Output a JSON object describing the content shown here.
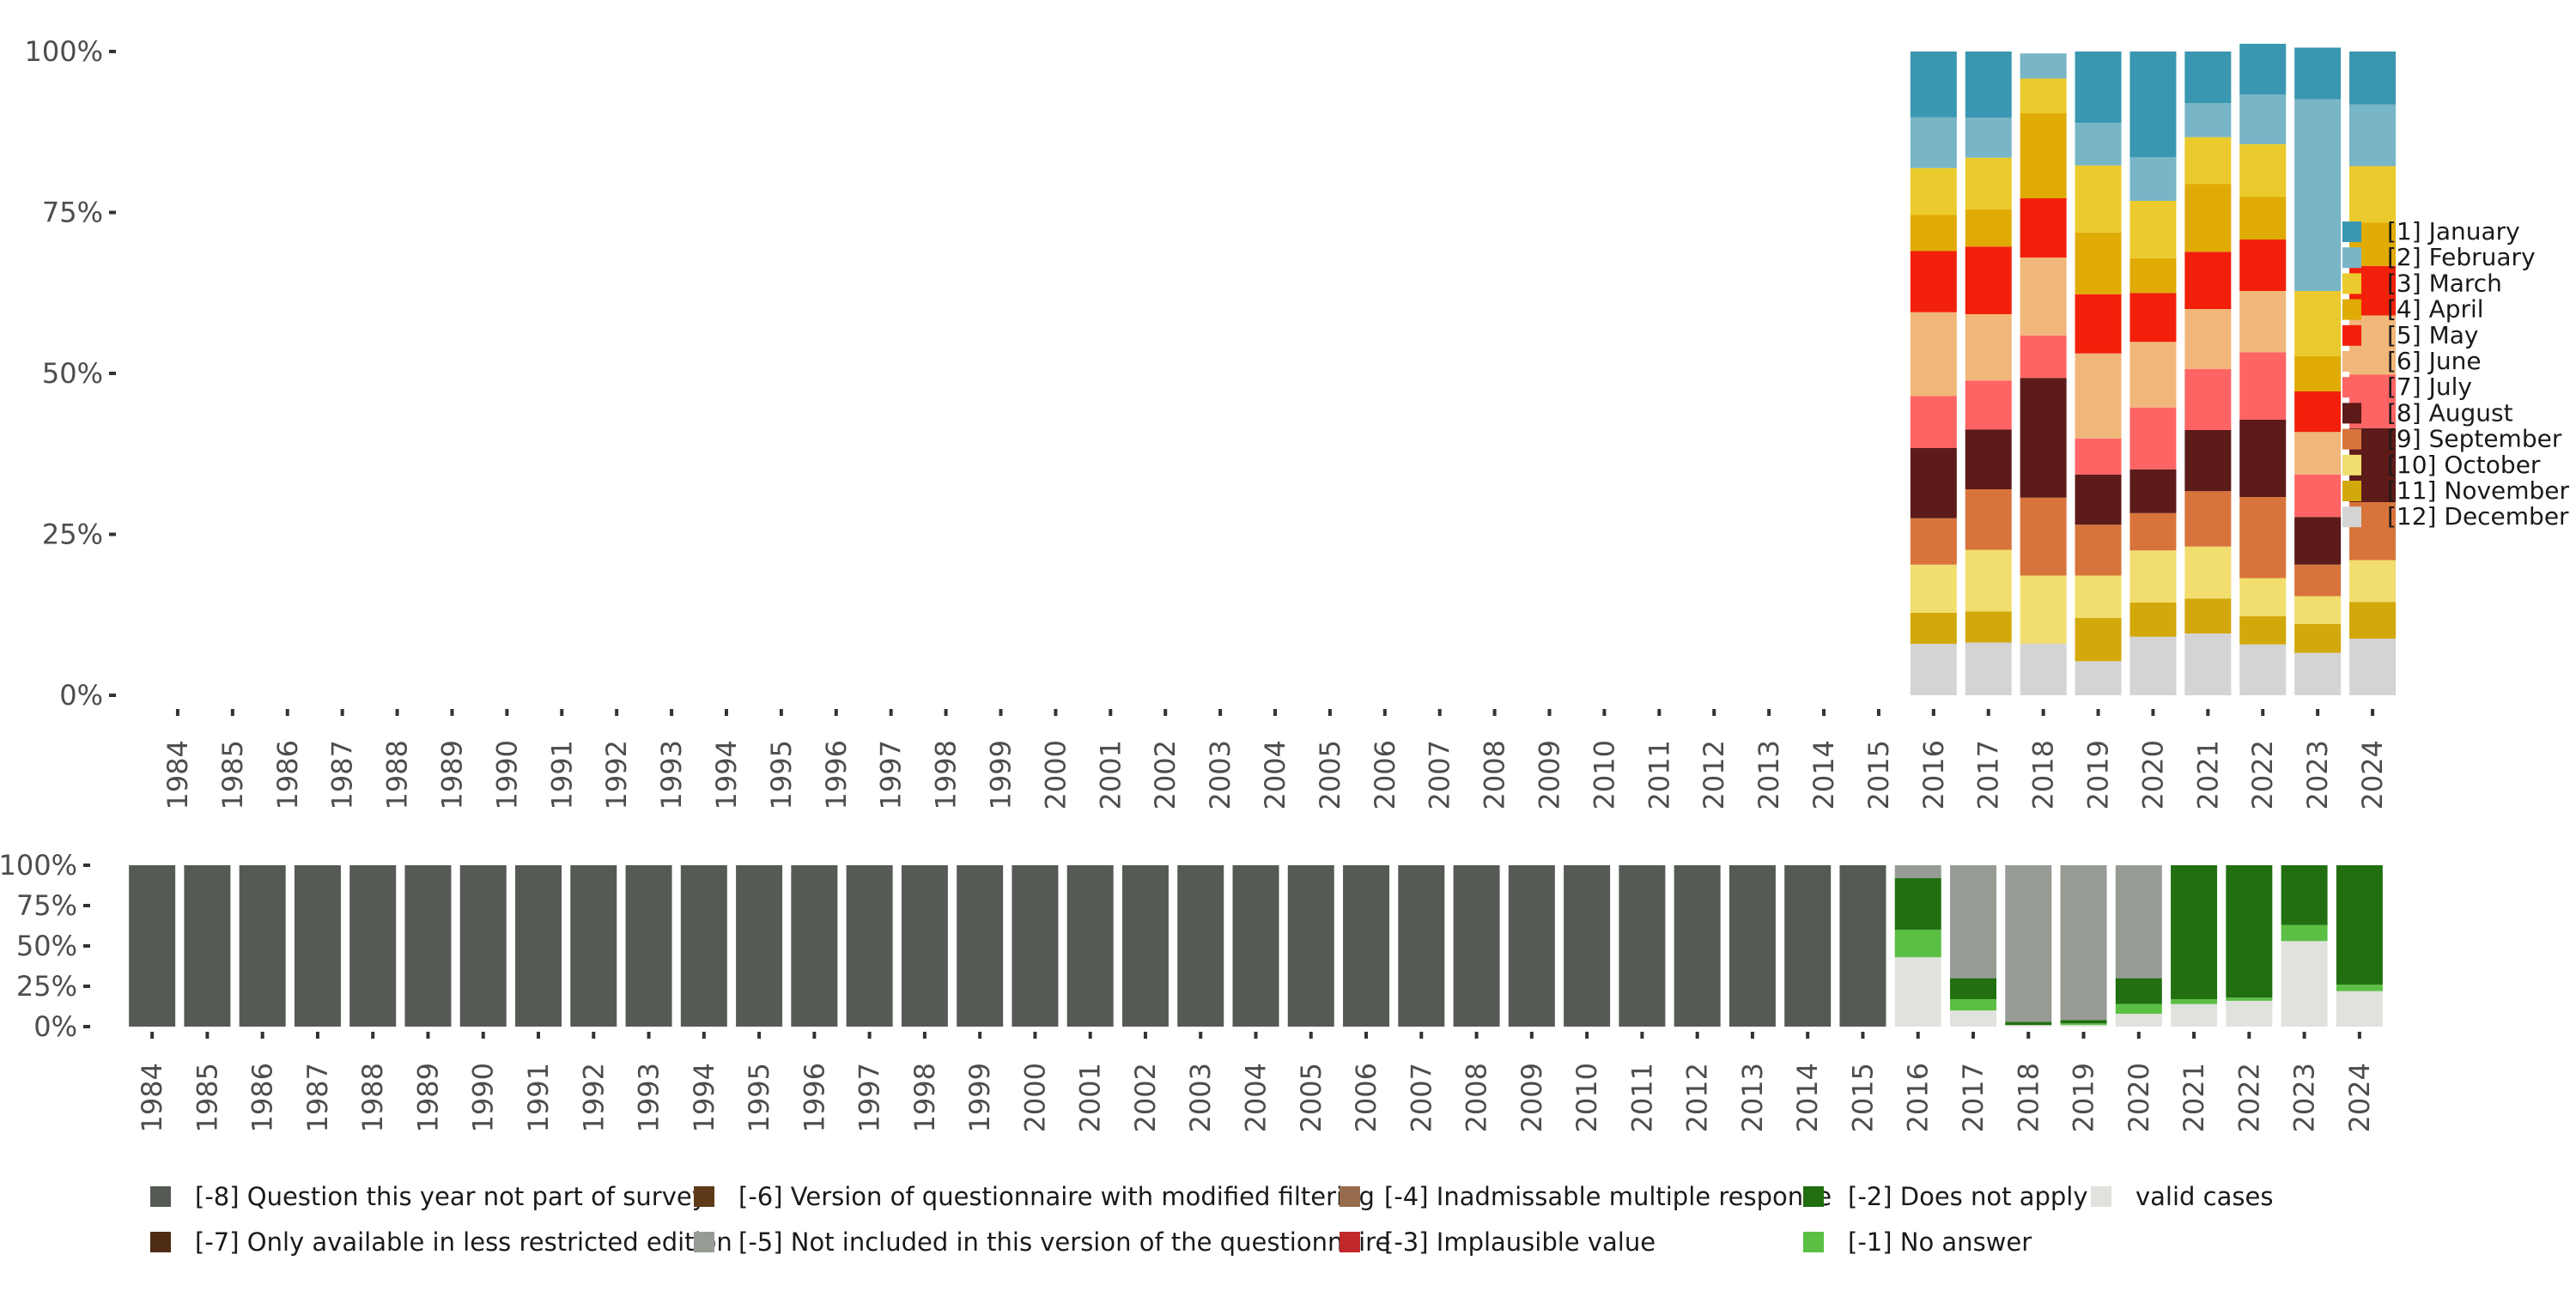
{
  "chart_data": [
    {
      "type": "bar",
      "stacked": true,
      "y_format": "percent",
      "ylim": [
        0,
        100
      ],
      "y_ticks": [
        "0%",
        "25%",
        "50%",
        "75%",
        "100%"
      ],
      "categories": [
        "1984",
        "1985",
        "1986",
        "1987",
        "1988",
        "1989",
        "1990",
        "1991",
        "1992",
        "1993",
        "1994",
        "1995",
        "1996",
        "1997",
        "1998",
        "1999",
        "2000",
        "2001",
        "2002",
        "2003",
        "2004",
        "2005",
        "2006",
        "2007",
        "2008",
        "2009",
        "2010",
        "2011",
        "2012",
        "2013",
        "2014",
        "2015",
        "2016",
        "2017",
        "2018",
        "2019",
        "2020",
        "2021",
        "2022",
        "2023",
        "2024"
      ],
      "legend_position": "right",
      "series": [
        {
          "name": "[12] December",
          "color": "#d4d4d4",
          "values": [
            0,
            0,
            0,
            0,
            0,
            0,
            0,
            0,
            0,
            0,
            0,
            0,
            0,
            0,
            0,
            0,
            0,
            0,
            0,
            0,
            0,
            0,
            0,
            0,
            0,
            0,
            0,
            0,
            0,
            0,
            0,
            0,
            8,
            8.2,
            8,
            5.3,
            9.1,
            9.6,
            7.9,
            6.6,
            8.8
          ]
        },
        {
          "name": "[11] November",
          "color": "#d3a80a",
          "values": [
            0,
            0,
            0,
            0,
            0,
            0,
            0,
            0,
            0,
            0,
            0,
            0,
            0,
            0,
            0,
            0,
            0,
            0,
            0,
            0,
            0,
            0,
            0,
            0,
            0,
            0,
            0,
            0,
            0,
            0,
            0,
            0,
            4.8,
            4.8,
            0,
            6.7,
            5.3,
            5.4,
            4.4,
            4.5,
            5.7
          ]
        },
        {
          "name": "[10] October",
          "color": "#f1de6f",
          "values": [
            0,
            0,
            0,
            0,
            0,
            0,
            0,
            0,
            0,
            0,
            0,
            0,
            0,
            0,
            0,
            0,
            0,
            0,
            0,
            0,
            0,
            0,
            0,
            0,
            0,
            0,
            0,
            0,
            0,
            0,
            0,
            0,
            7.5,
            9.6,
            10.6,
            6.6,
            8.1,
            8.1,
            5.9,
            4.3,
            6.5
          ]
        },
        {
          "name": "[9] September",
          "color": "#d8743b",
          "values": [
            0,
            0,
            0,
            0,
            0,
            0,
            0,
            0,
            0,
            0,
            0,
            0,
            0,
            0,
            0,
            0,
            0,
            0,
            0,
            0,
            0,
            0,
            0,
            0,
            0,
            0,
            0,
            0,
            0,
            0,
            0,
            0,
            7.2,
            9.4,
            12.1,
            7.9,
            5.8,
            8.6,
            12.6,
            4.9,
            9
          ]
        },
        {
          "name": "[8] August",
          "color": "#5c1a18",
          "values": [
            0,
            0,
            0,
            0,
            0,
            0,
            0,
            0,
            0,
            0,
            0,
            0,
            0,
            0,
            0,
            0,
            0,
            0,
            0,
            0,
            0,
            0,
            0,
            0,
            0,
            0,
            0,
            0,
            0,
            0,
            0,
            0,
            10.9,
            9.3,
            18.6,
            7.8,
            6.8,
            9.5,
            12,
            7.4,
            11.5
          ]
        },
        {
          "name": "[7] July",
          "color": "#ff6464",
          "values": [
            0,
            0,
            0,
            0,
            0,
            0,
            0,
            0,
            0,
            0,
            0,
            0,
            0,
            0,
            0,
            0,
            0,
            0,
            0,
            0,
            0,
            0,
            0,
            0,
            0,
            0,
            0,
            0,
            0,
            0,
            0,
            0,
            8.1,
            7.6,
            6.6,
            5.6,
            9.6,
            9.5,
            10.5,
            6.6,
            8.3
          ]
        },
        {
          "name": "[6] June",
          "color": "#f1b77a",
          "values": [
            0,
            0,
            0,
            0,
            0,
            0,
            0,
            0,
            0,
            0,
            0,
            0,
            0,
            0,
            0,
            0,
            0,
            0,
            0,
            0,
            0,
            0,
            0,
            0,
            0,
            0,
            0,
            0,
            0,
            0,
            0,
            0,
            13,
            10.3,
            12.1,
            13.2,
            10.2,
            9.3,
            9.5,
            6.6,
            9.2
          ]
        },
        {
          "name": "[5] May",
          "color": "#f2200a",
          "values": [
            0,
            0,
            0,
            0,
            0,
            0,
            0,
            0,
            0,
            0,
            0,
            0,
            0,
            0,
            0,
            0,
            0,
            0,
            0,
            0,
            0,
            0,
            0,
            0,
            0,
            0,
            0,
            0,
            0,
            0,
            0,
            0,
            9.5,
            10.5,
            9.2,
            9.2,
            7.6,
            8.9,
            8,
            6.3,
            7.7
          ]
        },
        {
          "name": "[4] April",
          "color": "#e0ab04",
          "values": [
            0,
            0,
            0,
            0,
            0,
            0,
            0,
            0,
            0,
            0,
            0,
            0,
            0,
            0,
            0,
            0,
            0,
            0,
            0,
            0,
            0,
            0,
            0,
            0,
            0,
            0,
            0,
            0,
            0,
            0,
            0,
            0,
            5.6,
            5.8,
            13.2,
            9.6,
            5.4,
            10.5,
            6.6,
            5.5,
            6.7
          ]
        },
        {
          "name": "[3] March",
          "color": "#ebca2d",
          "values": [
            0,
            0,
            0,
            0,
            0,
            0,
            0,
            0,
            0,
            0,
            0,
            0,
            0,
            0,
            0,
            0,
            0,
            0,
            0,
            0,
            0,
            0,
            0,
            0,
            0,
            0,
            0,
            0,
            0,
            0,
            0,
            0,
            7.3,
            8,
            5.4,
            10.4,
            8.9,
            7.3,
            8.2,
            10.1,
            8.8
          ]
        },
        {
          "name": "[2] February",
          "color": "#78b5c6",
          "values": [
            0,
            0,
            0,
            0,
            0,
            0,
            0,
            0,
            0,
            0,
            0,
            0,
            0,
            0,
            0,
            0,
            0,
            0,
            0,
            0,
            0,
            0,
            0,
            0,
            0,
            0,
            0,
            0,
            0,
            0,
            0,
            0,
            7.9,
            6.2,
            3.9,
            6.6,
            6.8,
            5.3,
            7.7,
            29.8,
            9.6
          ]
        },
        {
          "name": "[1] January",
          "color": "#3a97b1",
          "values": [
            0,
            0,
            0,
            0,
            0,
            0,
            0,
            0,
            0,
            0,
            0,
            0,
            0,
            0,
            0,
            0,
            0,
            0,
            0,
            0,
            0,
            0,
            0,
            0,
            0,
            0,
            0,
            0,
            0,
            0,
            0,
            0,
            10.2,
            10.3,
            0,
            11.1,
            16.4,
            8,
            7.9,
            8,
            8.2
          ]
        }
      ],
      "legend_order": [
        "[1] January",
        "[2] February",
        "[3] March",
        "[4] April",
        "[5] May",
        "[6] June",
        "[7] July",
        "[8] August",
        "[9] September",
        "[10] October",
        "[11] November",
        "[12] December"
      ]
    },
    {
      "type": "bar",
      "stacked": true,
      "y_format": "percent",
      "ylim": [
        0,
        100
      ],
      "y_ticks": [
        "0%",
        "25%",
        "50%",
        "75%",
        "100%"
      ],
      "categories": [
        "1984",
        "1985",
        "1986",
        "1987",
        "1988",
        "1989",
        "1990",
        "1991",
        "1992",
        "1993",
        "1994",
        "1995",
        "1996",
        "1997",
        "1998",
        "1999",
        "2000",
        "2001",
        "2002",
        "2003",
        "2004",
        "2005",
        "2006",
        "2007",
        "2008",
        "2009",
        "2010",
        "2011",
        "2012",
        "2013",
        "2014",
        "2015",
        "2016",
        "2017",
        "2018",
        "2019",
        "2020",
        "2021",
        "2022",
        "2023",
        "2024"
      ],
      "legend_position": "bottom",
      "series": [
        {
          "name": "valid cases",
          "color": "#e0e2de",
          "values": [
            0,
            0,
            0,
            0,
            0,
            0,
            0,
            0,
            0,
            0,
            0,
            0,
            0,
            0,
            0,
            0,
            0,
            0,
            0,
            0,
            0,
            0,
            0,
            0,
            0,
            0,
            0,
            0,
            0,
            0,
            0,
            0,
            43,
            10,
            1,
            1,
            8,
            14,
            16,
            53,
            22
          ]
        },
        {
          "name": "[-1] No answer",
          "color": "#5bbf44",
          "values": [
            0,
            0,
            0,
            0,
            0,
            0,
            0,
            0,
            0,
            0,
            0,
            0,
            0,
            0,
            0,
            0,
            0,
            0,
            0,
            0,
            0,
            0,
            0,
            0,
            0,
            0,
            0,
            0,
            0,
            0,
            0,
            0,
            17,
            7,
            0,
            1,
            6,
            3,
            2,
            10,
            4
          ]
        },
        {
          "name": "[-2] Does not apply",
          "color": "#216f11",
          "values": [
            0,
            0,
            0,
            0,
            0,
            0,
            0,
            0,
            0,
            0,
            0,
            0,
            0,
            0,
            0,
            0,
            0,
            0,
            0,
            0,
            0,
            0,
            0,
            0,
            0,
            0,
            0,
            0,
            0,
            0,
            0,
            0,
            32,
            13,
            2,
            2,
            16,
            83,
            82,
            37,
            74
          ]
        },
        {
          "name": "[-3] Implausible value",
          "color": "#c0282b",
          "values": [
            0,
            0,
            0,
            0,
            0,
            0,
            0,
            0,
            0,
            0,
            0,
            0,
            0,
            0,
            0,
            0,
            0,
            0,
            0,
            0,
            0,
            0,
            0,
            0,
            0,
            0,
            0,
            0,
            0,
            0,
            0,
            0,
            0,
            0,
            0,
            0,
            0,
            0,
            0,
            0,
            0
          ]
        },
        {
          "name": "[-4] Inadmissable multiple response",
          "color": "#976b4d",
          "values": [
            0,
            0,
            0,
            0,
            0,
            0,
            0,
            0,
            0,
            0,
            0,
            0,
            0,
            0,
            0,
            0,
            0,
            0,
            0,
            0,
            0,
            0,
            0,
            0,
            0,
            0,
            0,
            0,
            0,
            0,
            0,
            0,
            0,
            0,
            0,
            0,
            0,
            0,
            0,
            0,
            0
          ]
        },
        {
          "name": "[-5] Not included in this version of the questionnaire",
          "color": "#969c94",
          "values": [
            0,
            0,
            0,
            0,
            0,
            0,
            0,
            0,
            0,
            0,
            0,
            0,
            0,
            0,
            0,
            0,
            0,
            0,
            0,
            0,
            0,
            0,
            0,
            0,
            0,
            0,
            0,
            0,
            0,
            0,
            0,
            0,
            8,
            70,
            97,
            96,
            70,
            0,
            0,
            0,
            0
          ]
        },
        {
          "name": "[-6] Version of questionnaire with modified filtering",
          "color": "#5e3a19",
          "values": [
            0,
            0,
            0,
            0,
            0,
            0,
            0,
            0,
            0,
            0,
            0,
            0,
            0,
            0,
            0,
            0,
            0,
            0,
            0,
            0,
            0,
            0,
            0,
            0,
            0,
            0,
            0,
            0,
            0,
            0,
            0,
            0,
            0,
            0,
            0,
            0,
            0,
            0,
            0,
            0,
            0
          ]
        },
        {
          "name": "[-7] Only available in less restricted edition",
          "color": "#4d2b15",
          "values": [
            0,
            0,
            0,
            0,
            0,
            0,
            0,
            0,
            0,
            0,
            0,
            0,
            0,
            0,
            0,
            0,
            0,
            0,
            0,
            0,
            0,
            0,
            0,
            0,
            0,
            0,
            0,
            0,
            0,
            0,
            0,
            0,
            0,
            0,
            0,
            0,
            0,
            0,
            0,
            0,
            0
          ]
        },
        {
          "name": "[-8] Question this year not part of survey",
          "color": "#555a55",
          "values": [
            100,
            100,
            100,
            100,
            100,
            100,
            100,
            100,
            100,
            100,
            100,
            100,
            100,
            100,
            100,
            100,
            100,
            100,
            100,
            100,
            100,
            100,
            100,
            100,
            100,
            100,
            100,
            100,
            100,
            100,
            100,
            100,
            0,
            0,
            0,
            0,
            0,
            0,
            0,
            0,
            0
          ]
        }
      ],
      "legend_rows": [
        [
          "[-8] Question this year not part of survey",
          "[-6] Version of questionnaire with modified filtering",
          "[-4] Inadmissable multiple response",
          "[-2] Does not apply",
          "valid cases"
        ],
        [
          "[-7] Only available in less restricted edition",
          "[-5] Not included in this version of the questionnaire",
          "[-3] Implausible value",
          "[-1] No answer"
        ]
      ]
    }
  ]
}
